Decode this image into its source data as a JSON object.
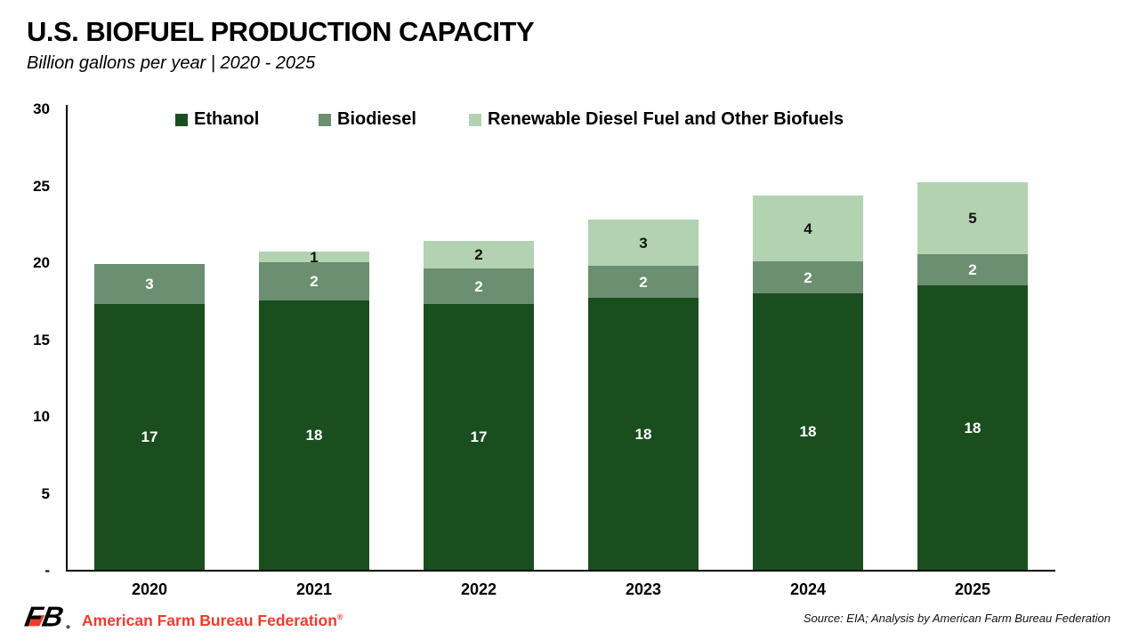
{
  "header": {
    "title": "U.S. BIOFUEL PRODUCTION CAPACITY",
    "subtitle": "Billion gallons per year | 2020 - 2025"
  },
  "footer": {
    "brand": "American Farm Bureau Federation",
    "registered": "®",
    "brand_color": "#EE3B2E",
    "source": "Source: EIA; Analysis by American Farm Bureau Federation"
  },
  "chart_data": {
    "type": "bar",
    "stacked": true,
    "title": "U.S. BIOFUEL PRODUCTION CAPACITY",
    "subtitle": "Billion gallons per year | 2020 - 2025",
    "unit": "billion gallons per year",
    "categories": [
      "2020",
      "2021",
      "2022",
      "2023",
      "2024",
      "2025"
    ],
    "series": [
      {
        "name": "Ethanol",
        "color": "#1A4E1F",
        "label_color": "#FFFFFF",
        "labels": [
          "17",
          "18",
          "17",
          "18",
          "18",
          "18"
        ],
        "values": [
          17.3,
          17.5,
          17.3,
          17.7,
          18.0,
          18.5
        ]
      },
      {
        "name": "Biodiesel",
        "color": "#6B8F70",
        "label_color": "#FFFFFF",
        "labels": [
          "3",
          "2",
          "2",
          "2",
          "2",
          "2"
        ],
        "values": [
          2.6,
          2.5,
          2.3,
          2.1,
          2.1,
          2.0
        ]
      },
      {
        "name": "Renewable Diesel Fuel and Other Biofuels",
        "color": "#B2D2B1",
        "label_color": "#111111",
        "labels": [
          "",
          "1",
          "2",
          "3",
          "4",
          "5"
        ],
        "values": [
          0,
          0.7,
          1.8,
          3.0,
          4.3,
          4.7
        ]
      }
    ],
    "ylim": [
      0,
      30
    ],
    "yticks": [
      {
        "value": 0,
        "label": "-"
      },
      {
        "value": 5,
        "label": "5"
      },
      {
        "value": 10,
        "label": "10"
      },
      {
        "value": 15,
        "label": "15"
      },
      {
        "value": 20,
        "label": "20"
      },
      {
        "value": 25,
        "label": "25"
      },
      {
        "value": 30,
        "label": "30"
      }
    ],
    "legend_position": "top",
    "grid": false
  }
}
